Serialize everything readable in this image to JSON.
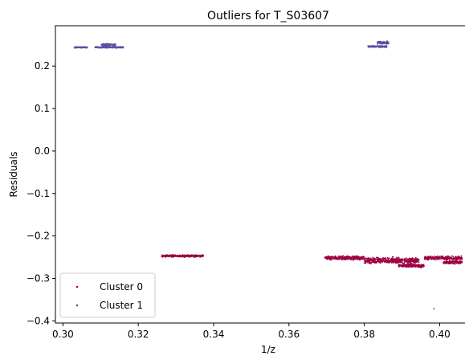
{
  "chart_data": {
    "type": "scatter",
    "title": "Outliers for T_S03607",
    "xlabel": "1/z",
    "ylabel": "Residuals",
    "xlim": [
      0.298,
      0.411
    ],
    "ylim": [
      -0.405,
      0.295
    ],
    "xticks": [
      0.3,
      0.32,
      0.34,
      0.36,
      0.38,
      0.4
    ],
    "xtick_labels": [
      "0.30",
      "0.32",
      "0.34",
      "0.36",
      "0.38",
      "0.40"
    ],
    "yticks": [
      -0.4,
      -0.3,
      -0.2,
      -0.1,
      0.0,
      0.1,
      0.2
    ],
    "ytick_labels": [
      "−0.4",
      "−0.3",
      "−0.2",
      "−0.1",
      "0.0",
      "0.1",
      "0.2"
    ],
    "grid": false,
    "legend": {
      "placement": "lower-left"
    },
    "series": [
      {
        "name": "Cluster 0",
        "color": "#9e0142",
        "clusters": [
          {
            "x_range": [
              0.3262,
              0.3374
            ],
            "y_center": -0.247,
            "y_spread": 0.0035
          },
          {
            "x_range": [
              0.3695,
              0.38
            ],
            "y_center": -0.252,
            "y_spread": 0.006
          },
          {
            "x_range": [
              0.38,
              0.3945
            ],
            "y_center": -0.258,
            "y_spread": 0.01
          },
          {
            "x_range": [
              0.389,
              0.396
            ],
            "y_center": -0.27,
            "y_spread": 0.006
          },
          {
            "x_range": [
              0.396,
              0.406
            ],
            "y_center": -0.252,
            "y_spread": 0.006
          },
          {
            "x_range": [
              0.401,
              0.406
            ],
            "y_center": -0.262,
            "y_spread": 0.005
          }
        ],
        "points": [
          {
            "x": 0.3985,
            "y": -0.371
          }
        ]
      },
      {
        "name": "Cluster 1",
        "color": "#5e4fa2",
        "clusters": [
          {
            "x_range": [
              0.303,
              0.3065
            ],
            "y_center": 0.244,
            "y_spread": 0.002
          },
          {
            "x_range": [
              0.3085,
              0.316
            ],
            "y_center": 0.244,
            "y_spread": 0.002
          },
          {
            "x_range": [
              0.3102,
              0.314
            ],
            "y_center": 0.25,
            "y_spread": 0.004
          },
          {
            "x_range": [
              0.381,
              0.386
            ],
            "y_center": 0.246,
            "y_spread": 0.003
          },
          {
            "x_range": [
              0.3835,
              0.3865
            ],
            "y_center": 0.255,
            "y_spread": 0.005
          }
        ],
        "points": []
      }
    ]
  }
}
